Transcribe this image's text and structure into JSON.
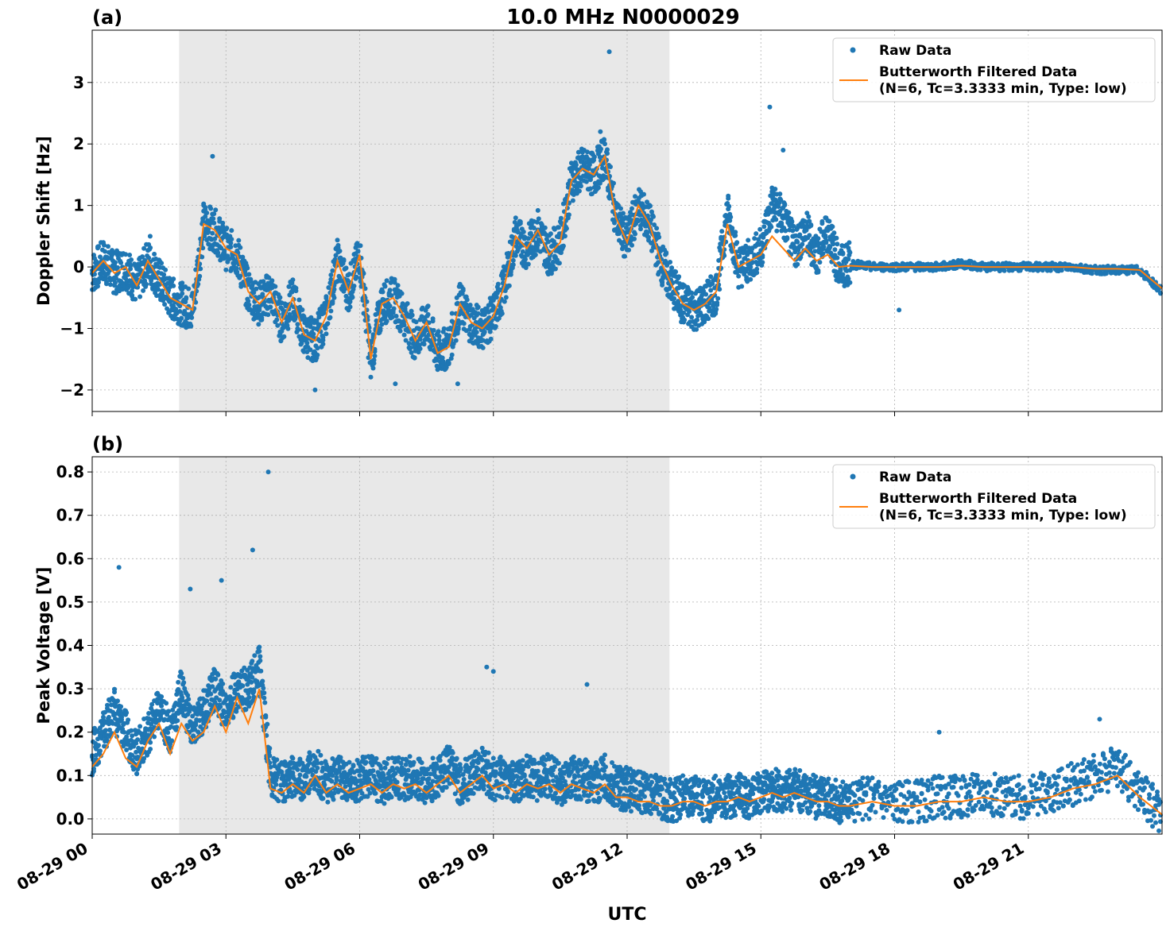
{
  "figure_title": "10.0 MHz N0000029",
  "xlabel": "UTC",
  "colors": {
    "raw": "#1f77b4",
    "filtered": "#ff7f0e",
    "night_shade": "#e8e8e8",
    "grid": "#b0b0b0"
  },
  "chart_data": [
    {
      "type": "scatter",
      "panel_label": "(a)",
      "ylabel": "Doppler Shift [Hz]",
      "xlim_hours": [
        0,
        24
      ],
      "ylim": [
        -2.35,
        3.85
      ],
      "yticks": [
        -2,
        -1,
        0,
        1,
        2,
        3
      ],
      "ytick_labels": [
        "−2",
        "−1",
        "0",
        "1",
        "2",
        "3"
      ],
      "xtick_labels": [],
      "shaded_region_hours": [
        1.95,
        12.95
      ],
      "grid": true,
      "legend_placement": "top-right",
      "series": [
        {
          "name": "Raw Data",
          "style": "points",
          "x": [
            0,
            0.25,
            0.5,
            0.75,
            1,
            1.25,
            1.5,
            1.75,
            2,
            2.25,
            2.5,
            2.75,
            3,
            3.25,
            3.5,
            3.75,
            4,
            4.25,
            4.5,
            4.75,
            5,
            5.25,
            5.5,
            5.75,
            6,
            6.25,
            6.5,
            6.75,
            7,
            7.25,
            7.5,
            7.75,
            8,
            8.25,
            8.5,
            8.75,
            9,
            9.25,
            9.5,
            9.75,
            10,
            10.25,
            10.5,
            10.75,
            11,
            11.25,
            11.5,
            11.75,
            12,
            12.25,
            12.5,
            12.75,
            13,
            13.25,
            13.5,
            13.75,
            14,
            14.25,
            14.5,
            14.75,
            15,
            15.25,
            15.5,
            15.75,
            16,
            16.25,
            16.5,
            16.75,
            17,
            17.5,
            18,
            18.5,
            19,
            19.5,
            20,
            20.5,
            21,
            21.5,
            22,
            22.5,
            23,
            23.5,
            24
          ],
          "y": [
            -0.1,
            0.1,
            -0.1,
            0.0,
            -0.3,
            0.1,
            -0.2,
            -0.5,
            -0.6,
            -0.7,
            0.7,
            0.6,
            0.3,
            0.2,
            -0.4,
            -0.6,
            -0.4,
            -0.9,
            -0.5,
            -1.1,
            -1.2,
            -0.8,
            0.1,
            -0.4,
            0.2,
            -1.5,
            -0.6,
            -0.5,
            -0.8,
            -1.2,
            -0.9,
            -1.4,
            -1.3,
            -0.6,
            -0.9,
            -1.0,
            -0.8,
            -0.3,
            0.5,
            0.3,
            0.6,
            0.2,
            0.4,
            1.4,
            1.6,
            1.5,
            1.8,
            0.8,
            0.4,
            1.0,
            0.7,
            0.1,
            -0.3,
            -0.6,
            -0.7,
            -0.6,
            -0.4,
            0.9,
            0.0,
            0.1,
            0.3,
            1.0,
            0.8,
            0.3,
            0.6,
            0.2,
            0.6,
            0.0,
            0.05,
            0.0,
            0.0,
            0.0,
            0.0,
            0.05,
            0.0,
            0.0,
            0.0,
            0.0,
            0.0,
            -0.05,
            -0.05,
            -0.05,
            -0.4
          ],
          "outlier_y": [
            1.8,
            0.5,
            3.5,
            2.6,
            2.2,
            1.9,
            -2.0,
            -1.9,
            -1.9,
            -0.7
          ]
        },
        {
          "name": "Butterworth Filtered Data\n(N=6, Tc=3.3333 min, Type: low)",
          "style": "line",
          "x": [
            0,
            0.25,
            0.5,
            0.75,
            1,
            1.25,
            1.5,
            1.75,
            2,
            2.25,
            2.5,
            2.75,
            3,
            3.25,
            3.5,
            3.75,
            4,
            4.25,
            4.5,
            4.75,
            5,
            5.25,
            5.5,
            5.75,
            6,
            6.25,
            6.5,
            6.75,
            7,
            7.25,
            7.5,
            7.75,
            8,
            8.25,
            8.5,
            8.75,
            9,
            9.25,
            9.5,
            9.75,
            10,
            10.25,
            10.5,
            10.75,
            11,
            11.25,
            11.5,
            11.75,
            12,
            12.25,
            12.5,
            12.75,
            13,
            13.25,
            13.5,
            13.75,
            14,
            14.25,
            14.5,
            14.75,
            15,
            15.25,
            15.5,
            15.75,
            16,
            16.25,
            16.5,
            16.75,
            17,
            17.5,
            18,
            18.5,
            19,
            19.5,
            20,
            20.5,
            21,
            21.5,
            22,
            22.5,
            23,
            23.5,
            24
          ],
          "y": [
            -0.1,
            0.1,
            -0.1,
            0.0,
            -0.3,
            0.1,
            -0.2,
            -0.5,
            -0.6,
            -0.7,
            0.7,
            0.6,
            0.3,
            0.2,
            -0.4,
            -0.6,
            -0.4,
            -0.9,
            -0.5,
            -1.1,
            -1.2,
            -0.8,
            0.1,
            -0.4,
            0.2,
            -1.5,
            -0.6,
            -0.5,
            -0.8,
            -1.2,
            -0.9,
            -1.4,
            -1.3,
            -0.6,
            -0.9,
            -1.0,
            -0.8,
            -0.3,
            0.5,
            0.3,
            0.6,
            0.2,
            0.4,
            1.4,
            1.6,
            1.5,
            1.8,
            0.8,
            0.4,
            1.0,
            0.7,
            0.1,
            -0.3,
            -0.6,
            -0.7,
            -0.6,
            -0.4,
            0.7,
            0.0,
            0.1,
            0.2,
            0.5,
            0.3,
            0.1,
            0.3,
            0.1,
            0.2,
            0.0,
            0.02,
            0.0,
            0.0,
            0.0,
            0.0,
            0.02,
            0.0,
            0.0,
            0.0,
            0.0,
            0.0,
            -0.03,
            -0.03,
            -0.05,
            -0.35
          ]
        }
      ]
    },
    {
      "type": "scatter",
      "panel_label": "(b)",
      "ylabel": "Peak Voltage [V]",
      "xlim_hours": [
        0,
        24
      ],
      "ylim": [
        -0.035,
        0.835
      ],
      "yticks": [
        0.0,
        0.1,
        0.2,
        0.3,
        0.4,
        0.5,
        0.6,
        0.7,
        0.8
      ],
      "ytick_labels": [
        "0.0",
        "0.1",
        "0.2",
        "0.3",
        "0.4",
        "0.5",
        "0.6",
        "0.7",
        "0.8"
      ],
      "xticks_hours": [
        0,
        3,
        6,
        9,
        12,
        15,
        18,
        21
      ],
      "xtick_labels": [
        "08-29 00",
        "08-29 03",
        "08-29 06",
        "08-29 09",
        "08-29 12",
        "08-29 15",
        "08-29 18",
        "08-29 21"
      ],
      "shaded_region_hours": [
        1.95,
        12.95
      ],
      "grid": true,
      "legend_placement": "top-right",
      "series": [
        {
          "name": "Raw Data",
          "style": "points",
          "x": [
            0,
            0.25,
            0.5,
            0.75,
            1,
            1.25,
            1.5,
            1.75,
            2,
            2.25,
            2.5,
            2.75,
            3,
            3.25,
            3.5,
            3.75,
            4,
            4.25,
            4.5,
            4.75,
            5,
            5.25,
            5.5,
            5.75,
            6,
            6.25,
            6.5,
            6.75,
            7,
            7.25,
            7.5,
            7.75,
            8,
            8.25,
            8.5,
            8.75,
            9,
            9.25,
            9.5,
            9.75,
            10,
            10.25,
            10.5,
            10.75,
            11,
            11.25,
            11.5,
            11.75,
            12,
            12.25,
            12.5,
            12.75,
            13,
            13.25,
            13.5,
            13.75,
            14,
            14.25,
            14.5,
            14.75,
            15,
            15.25,
            15.5,
            15.75,
            16,
            16.25,
            16.5,
            16.75,
            17,
            17.5,
            18,
            18.5,
            19,
            19.5,
            20,
            20.5,
            21,
            21.5,
            22,
            22.5,
            23,
            23.5,
            24
          ],
          "y": [
            0.15,
            0.2,
            0.25,
            0.2,
            0.15,
            0.2,
            0.25,
            0.2,
            0.3,
            0.2,
            0.25,
            0.3,
            0.25,
            0.3,
            0.3,
            0.35,
            0.1,
            0.08,
            0.1,
            0.09,
            0.12,
            0.08,
            0.1,
            0.08,
            0.09,
            0.1,
            0.08,
            0.1,
            0.09,
            0.1,
            0.08,
            0.1,
            0.12,
            0.08,
            0.1,
            0.12,
            0.09,
            0.1,
            0.08,
            0.1,
            0.09,
            0.1,
            0.08,
            0.1,
            0.09,
            0.08,
            0.1,
            0.07,
            0.07,
            0.06,
            0.06,
            0.05,
            0.04,
            0.05,
            0.05,
            0.04,
            0.05,
            0.05,
            0.06,
            0.05,
            0.06,
            0.07,
            0.06,
            0.07,
            0.06,
            0.05,
            0.05,
            0.04,
            0.04,
            0.05,
            0.04,
            0.04,
            0.05,
            0.05,
            0.06,
            0.05,
            0.05,
            0.06,
            0.08,
            0.1,
            0.12,
            0.06,
            0.01
          ],
          "outlier_y": [
            0.58,
            0.53,
            0.55,
            0.62,
            0.8,
            0.35,
            0.34,
            0.31,
            0.2,
            0.23
          ]
        },
        {
          "name": "Butterworth Filtered Data\n(N=6, Tc=3.3333 min, Type: low)",
          "style": "line",
          "x": [
            0,
            0.25,
            0.5,
            0.75,
            1,
            1.25,
            1.5,
            1.75,
            2,
            2.25,
            2.5,
            2.75,
            3,
            3.25,
            3.5,
            3.75,
            4,
            4.25,
            4.5,
            4.75,
            5,
            5.25,
            5.5,
            5.75,
            6,
            6.25,
            6.5,
            6.75,
            7,
            7.25,
            7.5,
            7.75,
            8,
            8.25,
            8.5,
            8.75,
            9,
            9.25,
            9.5,
            9.75,
            10,
            10.25,
            10.5,
            10.75,
            11,
            11.25,
            11.5,
            11.75,
            12,
            12.25,
            12.5,
            12.75,
            13,
            13.25,
            13.5,
            13.75,
            14,
            14.25,
            14.5,
            14.75,
            15,
            15.25,
            15.5,
            15.75,
            16,
            16.25,
            16.5,
            16.75,
            17,
            17.5,
            18,
            18.5,
            19,
            19.5,
            20,
            20.5,
            21,
            21.5,
            22,
            22.5,
            23,
            23.5,
            24
          ],
          "y": [
            0.12,
            0.15,
            0.2,
            0.14,
            0.12,
            0.18,
            0.22,
            0.15,
            0.22,
            0.18,
            0.2,
            0.26,
            0.2,
            0.28,
            0.22,
            0.3,
            0.07,
            0.06,
            0.08,
            0.06,
            0.1,
            0.06,
            0.08,
            0.06,
            0.07,
            0.08,
            0.06,
            0.08,
            0.07,
            0.08,
            0.06,
            0.08,
            0.1,
            0.06,
            0.08,
            0.1,
            0.07,
            0.08,
            0.06,
            0.08,
            0.07,
            0.08,
            0.06,
            0.08,
            0.07,
            0.06,
            0.08,
            0.05,
            0.05,
            0.04,
            0.04,
            0.03,
            0.03,
            0.04,
            0.04,
            0.03,
            0.04,
            0.04,
            0.05,
            0.04,
            0.05,
            0.06,
            0.05,
            0.06,
            0.05,
            0.04,
            0.04,
            0.03,
            0.03,
            0.04,
            0.03,
            0.03,
            0.04,
            0.04,
            0.05,
            0.04,
            0.04,
            0.05,
            0.07,
            0.08,
            0.1,
            0.05,
            0.01
          ]
        }
      ]
    }
  ]
}
